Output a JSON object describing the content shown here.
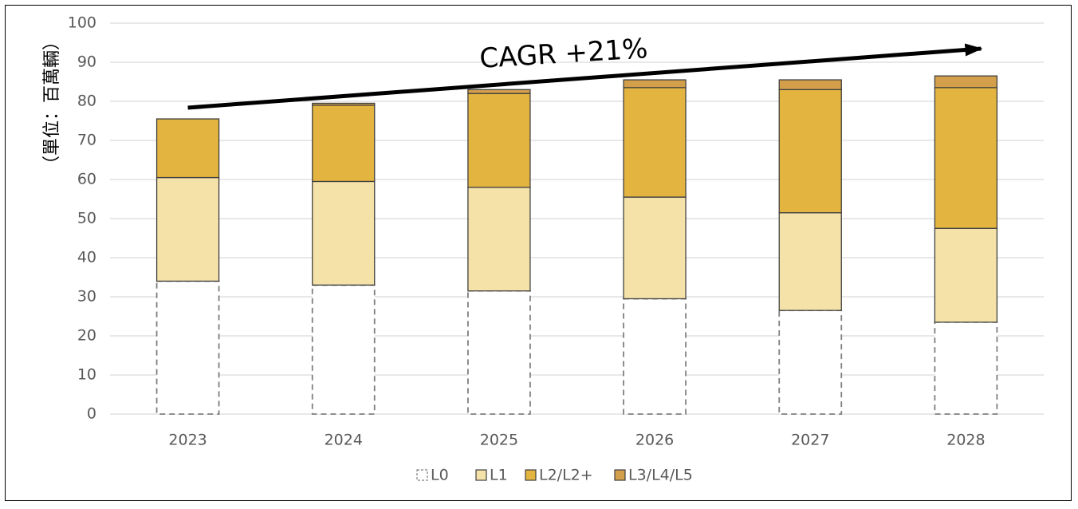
{
  "chart_data": {
    "type": "bar",
    "stacked": true,
    "title": "",
    "xlabel": "",
    "ylabel": "（單位：百萬輛）",
    "ylim": [
      0,
      100
    ],
    "yticks": [
      0,
      10,
      20,
      30,
      40,
      50,
      60,
      70,
      80,
      90,
      100
    ],
    "grid": true,
    "legend_position": "bottom",
    "categories": [
      "2023",
      "2024",
      "2025",
      "2026",
      "2027",
      "2028"
    ],
    "series": [
      {
        "name": "L0",
        "values": [
          34,
          33,
          31.5,
          29.5,
          26.5,
          23.5
        ],
        "color": "#ffffff",
        "style": "dashed"
      },
      {
        "name": "L1",
        "values": [
          26.5,
          26.5,
          26.5,
          26,
          25,
          24
        ],
        "color": "#F5E2A8"
      },
      {
        "name": "L2/L2+",
        "values": [
          15,
          19.5,
          24,
          28,
          31.5,
          36
        ],
        "color": "#E3B440"
      },
      {
        "name": "L3/L4/L5",
        "values": [
          0,
          0.5,
          1,
          2,
          2.5,
          3
        ],
        "color": "#D39F4B"
      }
    ],
    "annotation": {
      "text": "CAGR +21%",
      "from_category": "2023",
      "to_category": "2028"
    }
  }
}
